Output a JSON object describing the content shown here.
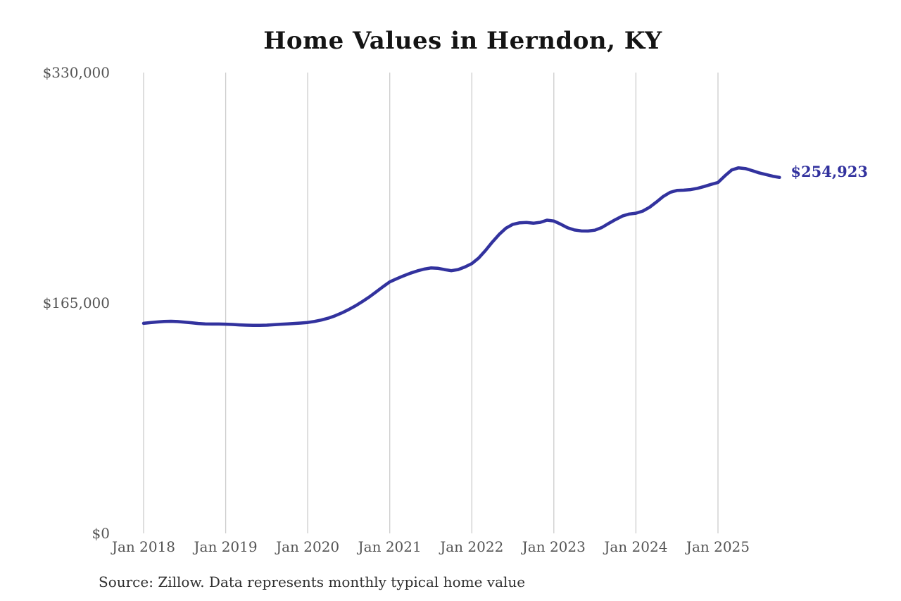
{
  "chart_data": {
    "type": "line",
    "title": "Home Values in Herndon, KY",
    "source_note": "Source: Zillow. Data represents monthly typical home value",
    "series_name": "Monthly typical home value",
    "x_start_month": "Jan 2018",
    "x_end_month": "Oct 2025",
    "ylim": [
      0,
      330000
    ],
    "y_ticks": [
      {
        "label": "$0",
        "value": 0
      },
      {
        "label": "$165,000",
        "value": 165000
      },
      {
        "label": "$330,000",
        "value": 330000
      }
    ],
    "x_ticks": [
      {
        "label": "Jan 2018",
        "month_index": 0
      },
      {
        "label": "Jan 2019",
        "month_index": 12
      },
      {
        "label": "Jan 2020",
        "month_index": 24
      },
      {
        "label": "Jan 2021",
        "month_index": 36
      },
      {
        "label": "Jan 2022",
        "month_index": 48
      },
      {
        "label": "Jan 2023",
        "month_index": 60
      },
      {
        "label": "Jan 2024",
        "month_index": 72
      },
      {
        "label": "Jan 2025",
        "month_index": 84
      }
    ],
    "end_label": "$254,923",
    "end_value": 254923,
    "line_color": "#32329e",
    "gridline_color": "#cccccc",
    "title_color": "#141414",
    "tick_color": "#545454",
    "values": [
      150400,
      150900,
      151400,
      151800,
      151900,
      151700,
      151300,
      150800,
      150300,
      150000,
      149900,
      149900,
      149800,
      149600,
      149300,
      149100,
      149000,
      149000,
      149100,
      149400,
      149700,
      150000,
      150300,
      150600,
      151000,
      151800,
      152800,
      154100,
      155800,
      157900,
      160300,
      163000,
      166000,
      169300,
      172900,
      176600,
      180100,
      182300,
      184400,
      186300,
      187900,
      189200,
      190100,
      189900,
      188900,
      188100,
      188900,
      190800,
      193200,
      197200,
      202600,
      208600,
      214100,
      218600,
      221300,
      222400,
      222600,
      222100,
      222700,
      224300,
      223700,
      221400,
      218900,
      217300,
      216600,
      216500,
      217100,
      219000,
      221900,
      224700,
      227200,
      228700,
      229300,
      230800,
      233500,
      237300,
      241300,
      244200,
      245600,
      245800,
      246200,
      247100,
      248400,
      249900,
      251300,
      256000,
      260200,
      261800,
      261300,
      259800,
      258200,
      257000,
      255800,
      254923
    ]
  }
}
